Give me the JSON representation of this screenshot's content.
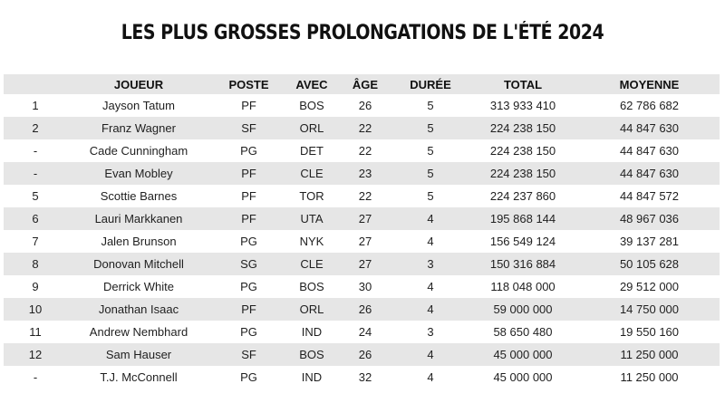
{
  "title": "LES PLUS GROSSES PROLONGATIONS DE L'ÉTÉ 2024",
  "colors": {
    "stripe": "#e6e6e6",
    "text": "#1a1a1a",
    "background": "#ffffff"
  },
  "table": {
    "headers": [
      "",
      "JOUEUR",
      "POSTE",
      "AVEC",
      "ÂGE",
      "DURÉE",
      "TOTAL",
      "MOYENNE"
    ],
    "rows": [
      [
        "1",
        "Jayson Tatum",
        "PF",
        "BOS",
        "26",
        "5",
        "313 933 410",
        "62 786 682"
      ],
      [
        "2",
        "Franz Wagner",
        "SF",
        "ORL",
        "22",
        "5",
        "224 238 150",
        "44 847 630"
      ],
      [
        "-",
        "Cade Cunningham",
        "PG",
        "DET",
        "22",
        "5",
        "224 238 150",
        "44 847 630"
      ],
      [
        "-",
        "Evan Mobley",
        "PF",
        "CLE",
        "23",
        "5",
        "224 238 150",
        "44 847 630"
      ],
      [
        "5",
        "Scottie Barnes",
        "PF",
        "TOR",
        "22",
        "5",
        "224 237 860",
        "44 847 572"
      ],
      [
        "6",
        "Lauri Markkanen",
        "PF",
        "UTA",
        "27",
        "4",
        "195 868 144",
        "48 967 036"
      ],
      [
        "7",
        "Jalen Brunson",
        "PG",
        "NYK",
        "27",
        "4",
        "156 549 124",
        "39 137 281"
      ],
      [
        "8",
        "Donovan Mitchell",
        "SG",
        "CLE",
        "27",
        "3",
        "150 316 884",
        "50 105 628"
      ],
      [
        "9",
        "Derrick White",
        "PG",
        "BOS",
        "30",
        "4",
        "118 048 000",
        "29 512 000"
      ],
      [
        "10",
        "Jonathan Isaac",
        "PF",
        "ORL",
        "26",
        "4",
        "59 000 000",
        "14 750 000"
      ],
      [
        "11",
        "Andrew Nembhard",
        "PG",
        "IND",
        "24",
        "3",
        "58 650 480",
        "19 550 160"
      ],
      [
        "12",
        "Sam Hauser",
        "SF",
        "BOS",
        "26",
        "4",
        "45 000 000",
        "11 250 000"
      ],
      [
        "-",
        "T.J. McConnell",
        "PG",
        "IND",
        "32",
        "4",
        "45 000 000",
        "11 250 000"
      ]
    ]
  }
}
